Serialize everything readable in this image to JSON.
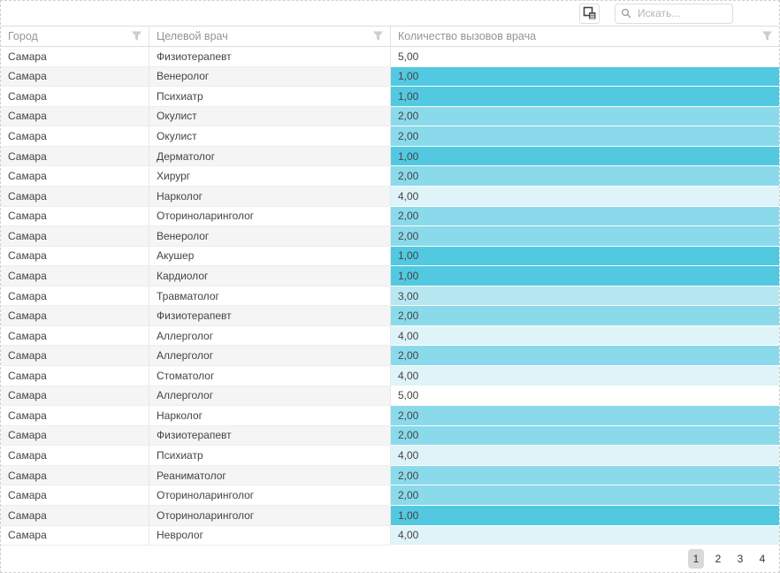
{
  "toolbar": {
    "column_chooser_icon": "column-chooser-icon",
    "search": {
      "placeholder": "Искать...",
      "value": "",
      "icon": "search-icon"
    }
  },
  "table": {
    "columns": [
      {
        "label": "Город",
        "filter_icon": "filter-funnel-icon"
      },
      {
        "label": "Целевой врач",
        "filter_icon": "filter-funnel-icon"
      },
      {
        "label": "Количество вызовов врача",
        "filter_icon": "filter-funnel-icon"
      }
    ],
    "rows": [
      {
        "city": "Самара",
        "doctor": "Физиотерапевт",
        "value": "5,00",
        "value_num": 5
      },
      {
        "city": "Самара",
        "doctor": "Венеролог",
        "value": "1,00",
        "value_num": 1
      },
      {
        "city": "Самара",
        "doctor": "Психиатр",
        "value": "1,00",
        "value_num": 1
      },
      {
        "city": "Самара",
        "doctor": "Окулист",
        "value": "2,00",
        "value_num": 2
      },
      {
        "city": "Самара",
        "doctor": "Окулист",
        "value": "2,00",
        "value_num": 2
      },
      {
        "city": "Самара",
        "doctor": "Дерматолог",
        "value": "1,00",
        "value_num": 1
      },
      {
        "city": "Самара",
        "doctor": "Хирург",
        "value": "2,00",
        "value_num": 2
      },
      {
        "city": "Самара",
        "doctor": "Нарколог",
        "value": "4,00",
        "value_num": 4
      },
      {
        "city": "Самара",
        "doctor": "Оториноларинголог",
        "value": "2,00",
        "value_num": 2
      },
      {
        "city": "Самара",
        "doctor": "Венеролог",
        "value": "2,00",
        "value_num": 2
      },
      {
        "city": "Самара",
        "doctor": "Акушер",
        "value": "1,00",
        "value_num": 1
      },
      {
        "city": "Самара",
        "doctor": "Кардиолог",
        "value": "1,00",
        "value_num": 1
      },
      {
        "city": "Самара",
        "doctor": "Травматолог",
        "value": "3,00",
        "value_num": 3
      },
      {
        "city": "Самара",
        "doctor": "Физиотерапевт",
        "value": "2,00",
        "value_num": 2
      },
      {
        "city": "Самара",
        "doctor": "Аллерголог",
        "value": "4,00",
        "value_num": 4
      },
      {
        "city": "Самара",
        "doctor": "Аллерголог",
        "value": "2,00",
        "value_num": 2
      },
      {
        "city": "Самара",
        "doctor": "Стоматолог",
        "value": "4,00",
        "value_num": 4
      },
      {
        "city": "Самара",
        "doctor": "Аллерголог",
        "value": "5,00",
        "value_num": 5
      },
      {
        "city": "Самара",
        "doctor": "Нарколог",
        "value": "2,00",
        "value_num": 2
      },
      {
        "city": "Самара",
        "doctor": "Физиотерапевт",
        "value": "2,00",
        "value_num": 2
      },
      {
        "city": "Самара",
        "doctor": "Психиатр",
        "value": "4,00",
        "value_num": 4
      },
      {
        "city": "Самара",
        "doctor": "Реаниматолог",
        "value": "2,00",
        "value_num": 2
      },
      {
        "city": "Самара",
        "doctor": "Оториноларинголог",
        "value": "2,00",
        "value_num": 2
      },
      {
        "city": "Самара",
        "doctor": "Оториноларинголог",
        "value": "1,00",
        "value_num": 1
      },
      {
        "city": "Самара",
        "doctor": "Невролог",
        "value": "4,00",
        "value_num": 4
      }
    ]
  },
  "colors": {
    "heatmap": {
      "1": "#52c9e1",
      "2": "#8adaeb",
      "3": "#b7e8f2",
      "4": "#dff4f9",
      "5": "#ffffff"
    },
    "row_alternate": "#f5f5f5",
    "header_text": "#959595",
    "pager_active_bg": "#d9d9d9"
  },
  "pager": {
    "pages": [
      "1",
      "2",
      "3",
      "4"
    ],
    "current": "1"
  }
}
